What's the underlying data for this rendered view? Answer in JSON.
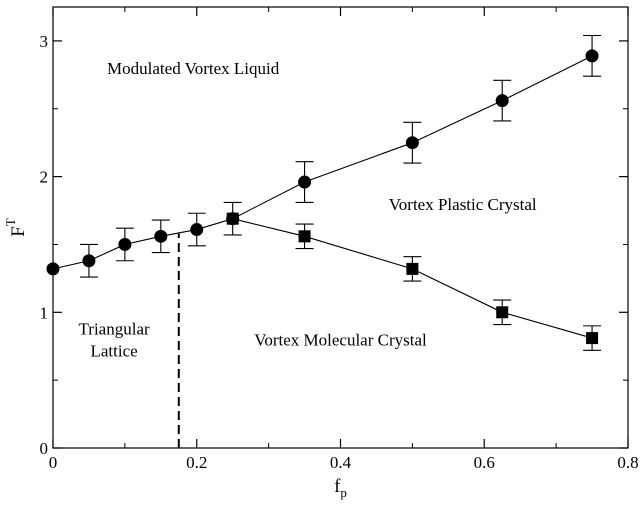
{
  "chart_data": {
    "type": "scatter",
    "xlabel": "f",
    "xlabel_sub": "p",
    "ylabel": "F",
    "ylabel_sup": "T",
    "xlim": [
      0,
      0.8
    ],
    "ylim": [
      0,
      3.25
    ],
    "x_ticks": [
      0,
      0.2,
      0.4,
      0.6,
      0.8
    ],
    "x_tick_labels": [
      "0",
      "0.2",
      "0.4",
      "0.6",
      "0.8"
    ],
    "y_ticks": [
      0,
      1,
      2,
      3
    ],
    "y_tick_labels": [
      "0",
      "1",
      "2",
      "3"
    ],
    "grid": false,
    "series": [
      {
        "marker": "circle",
        "points": [
          {
            "x": 0.0,
            "y": 1.32,
            "err": 0.0
          },
          {
            "x": 0.05,
            "y": 1.38,
            "err": 0.12
          },
          {
            "x": 0.1,
            "y": 1.5,
            "err": 0.12
          },
          {
            "x": 0.15,
            "y": 1.56,
            "err": 0.12
          },
          {
            "x": 0.2,
            "y": 1.61,
            "err": 0.12
          },
          {
            "x": 0.25,
            "y": 1.69,
            "err": 0.12
          },
          {
            "x": 0.35,
            "y": 1.96,
            "err": 0.15
          },
          {
            "x": 0.5,
            "y": 2.25,
            "err": 0.15
          },
          {
            "x": 0.625,
            "y": 2.56,
            "err": 0.15
          },
          {
            "x": 0.75,
            "y": 2.89,
            "err": 0.15
          }
        ]
      },
      {
        "marker": "square",
        "points": [
          {
            "x": 0.25,
            "y": 1.69,
            "err": 0.0
          },
          {
            "x": 0.35,
            "y": 1.56,
            "err": 0.09
          },
          {
            "x": 0.5,
            "y": 1.32,
            "err": 0.09
          },
          {
            "x": 0.625,
            "y": 1.0,
            "err": 0.09
          },
          {
            "x": 0.75,
            "y": 0.81,
            "err": 0.09
          }
        ]
      }
    ],
    "boundary_line": {
      "style": "dashed",
      "x": 0.175,
      "y_from": 0.0,
      "y_to": 1.58
    },
    "region_labels": [
      {
        "lines": [
          "Modulated Vortex Liquid"
        ],
        "x": 0.195,
        "y": 2.8
      },
      {
        "lines": [
          "Vortex Plastic Crystal"
        ],
        "x": 0.57,
        "y": 1.8
      },
      {
        "lines": [
          "Vortex Molecular Crystal"
        ],
        "x": 0.4,
        "y": 0.8
      },
      {
        "lines": [
          "Triangular",
          "Lattice"
        ],
        "x": 0.085,
        "y": 0.8
      }
    ]
  }
}
